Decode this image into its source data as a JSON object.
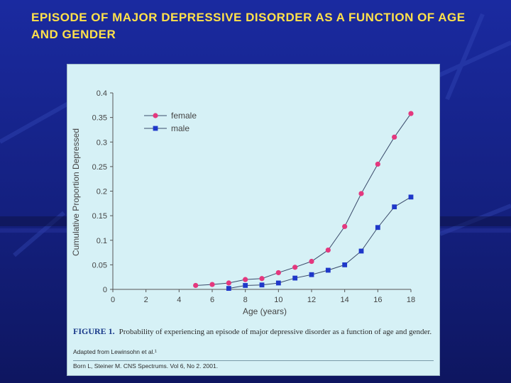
{
  "slide": {
    "title": "EPISODE OF MAJOR DEPRESSIVE DISORDER AS A FUNCTION OF AGE AND GENDER",
    "colors": {
      "background": "#16238a",
      "title": "#ffe14a",
      "panel": "#d6f1f6"
    }
  },
  "caption": {
    "figure_label": "FIGURE 1.",
    "figure_text": "Probability of experiencing an episode of major depressive disorder as a function of age and gender.",
    "adapted": "Adapted from Lewinsohn et al.¹",
    "citation": "Born L, Steiner M. CNS Spectrums. Vol 6, No 2. 2001."
  },
  "chart_data": {
    "type": "line",
    "xlabel": "Age (years)",
    "ylabel": "Cumulative Proportion Depressed",
    "xlim": [
      0,
      18
    ],
    "ylim": [
      0,
      0.4
    ],
    "xticks": [
      "0",
      "2",
      "4",
      "6",
      "8",
      "10",
      "12",
      "14",
      "16",
      "18"
    ],
    "yticks": [
      "0",
      "0.05",
      "0.1",
      "0.15",
      "0.2",
      "0.25",
      "0.3",
      "0.35",
      "0.4"
    ],
    "legend_position": "top-left",
    "grid": false,
    "series": [
      {
        "name": "female",
        "color": "#e4387e",
        "marker": "circle",
        "x": [
          5,
          6,
          7,
          8,
          9,
          10,
          11,
          12,
          13,
          14,
          15,
          16,
          17,
          18
        ],
        "y": [
          0.008,
          0.01,
          0.013,
          0.02,
          0.022,
          0.034,
          0.045,
          0.057,
          0.08,
          0.128,
          0.195,
          0.255,
          0.31,
          0.358
        ]
      },
      {
        "name": "male",
        "color": "#1f38c9",
        "marker": "square",
        "x": [
          7,
          8,
          9,
          10,
          11,
          12,
          13,
          14,
          15,
          16,
          17,
          18
        ],
        "y": [
          0.002,
          0.008,
          0.009,
          0.013,
          0.023,
          0.03,
          0.039,
          0.05,
          0.078,
          0.126,
          0.168,
          0.188
        ]
      }
    ]
  }
}
